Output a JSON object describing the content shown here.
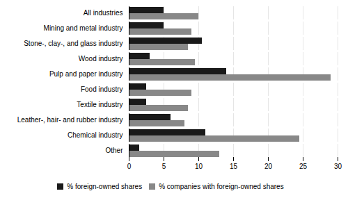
{
  "chart_data": {
    "type": "bar",
    "orientation": "horizontal",
    "categories": [
      "All industries",
      "Mining and metal industry",
      "Stone-, clay-, and glass industry",
      "Wood industry",
      "Pulp and paper industry",
      "Food industry",
      "Textile industry",
      "Leather-, hair- and rubber industry",
      "Chemical industry",
      "Other"
    ],
    "series": [
      {
        "name": "% foreign-owned shares",
        "color": "#1a1a1a",
        "values": [
          5.0,
          5.0,
          10.5,
          3.0,
          14.0,
          2.5,
          2.5,
          6.0,
          11.0,
          1.5
        ]
      },
      {
        "name": "% companies with foreign-owned shares",
        "color": "#888888",
        "values": [
          10.0,
          9.0,
          8.5,
          9.5,
          29.0,
          9.0,
          8.5,
          8.0,
          24.5,
          13.0
        ]
      }
    ],
    "xlim": [
      0,
      30
    ],
    "xticks": [
      0,
      5,
      10,
      15,
      20,
      25,
      30
    ],
    "grid": true,
    "legend": "bottom"
  }
}
